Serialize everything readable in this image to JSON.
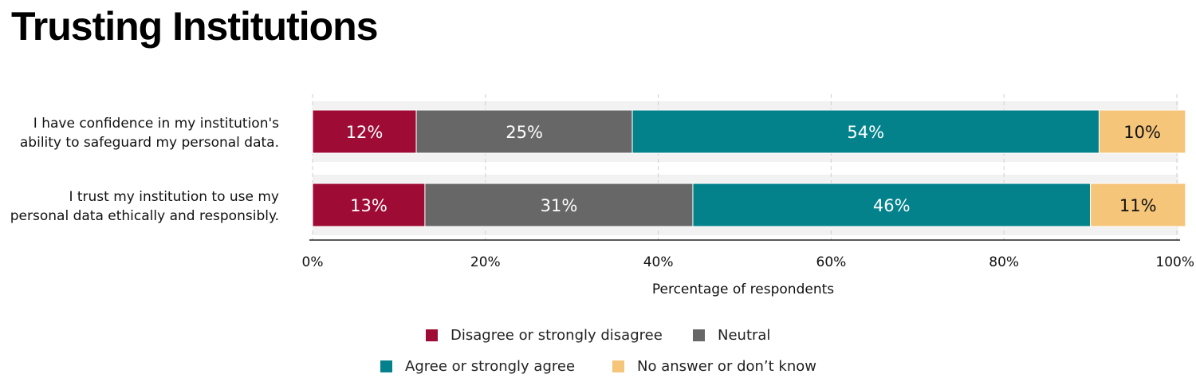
{
  "page": {
    "title": "Trusting Institutions"
  },
  "chart_data": {
    "type": "bar",
    "orientation": "horizontal",
    "stacked": true,
    "categories": [
      [
        "I have confidence in my institution's",
        "ability to safeguard my personal data."
      ],
      [
        "I trust my institution to use my",
        "personal data ethically and responsibly."
      ]
    ],
    "series": [
      {
        "name": "Disagree or strongly disagree",
        "values": [
          12,
          13
        ],
        "labels": [
          "12%",
          "13%"
        ],
        "color": "#9e0b35"
      },
      {
        "name": "Neutral",
        "values": [
          25,
          31
        ],
        "labels": [
          "25%",
          "31%"
        ],
        "color": "#676767"
      },
      {
        "name": "Agree or strongly agree",
        "values": [
          54,
          46
        ],
        "labels": [
          "54%",
          "46%"
        ],
        "color": "#03828b"
      },
      {
        "name": "No answer or don’t know",
        "values": [
          10,
          11
        ],
        "labels": [
          "10%",
          "11%"
        ],
        "color": "#f5c57a"
      }
    ],
    "title": "Trusting Institutions",
    "xlabel": "Percentage of respondents",
    "ylabel": "",
    "xlim": [
      0,
      100
    ],
    "xticks": [
      "0%",
      "20%",
      "40%",
      "60%",
      "80%",
      "100%"
    ],
    "grid": "vertical dashed",
    "legend": "bottom"
  }
}
